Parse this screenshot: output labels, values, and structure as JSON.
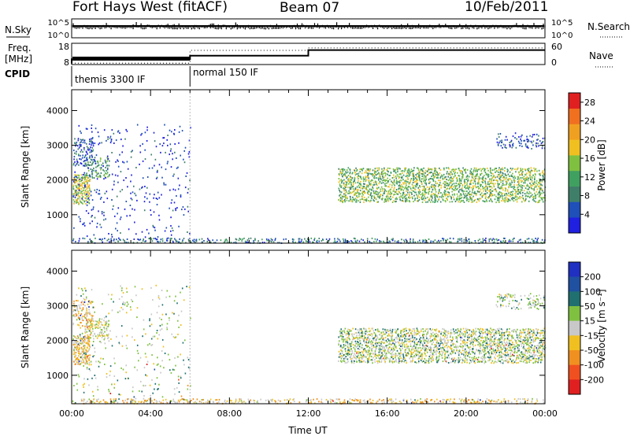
{
  "title": {
    "station": "Fort Hays West (fitACF)",
    "beam": "Beam 07",
    "date": "10/Feb/2011"
  },
  "colors": {
    "rp_cols": [
      "#2020e0",
      "#1f4fb8",
      "#3f7f6a",
      "#40a060",
      "#80c040",
      "#f0c020",
      "#f0a020",
      "#f07020",
      "#e02020"
    ],
    "vel_cols": [
      "#2030c0",
      "#2050a0",
      "#207070",
      "#80c040",
      "#c8c8c8",
      "#f0c020",
      "#f09020",
      "#f05020",
      "#e02020"
    ]
  },
  "chart_data": [
    {
      "type": "line",
      "name": "noise",
      "left_label": "N.Sky",
      "right_label": "N.Search",
      "y_ticks": [
        "10^5",
        "10^0"
      ],
      "right_ticks": [
        "10^5",
        "10^0"
      ],
      "note": "sky noise (solid) and search noise (dotted) vs time"
    },
    {
      "type": "line",
      "name": "frequency",
      "left_label": "Freq.",
      "left_unit": "[MHz]",
      "right_label": "Nave",
      "y_ticks": [
        "18",
        "8"
      ],
      "right_ticks": [
        "60",
        "0"
      ],
      "ylim": [
        8,
        18
      ],
      "right_ylim": [
        0,
        60
      ],
      "freq_series": {
        "x": [
          0.0,
          0.0,
          6.0,
          6.0,
          12.0,
          12.0,
          24.0
        ],
        "y": [
          8.5,
          10.5,
          10.5,
          12.2,
          12.2,
          14.8,
          14.8
        ]
      },
      "nave_series": {
        "x": [
          0.0,
          6.0,
          6.0,
          12.0,
          12.0,
          24.0
        ],
        "y": [
          4,
          4,
          40,
          40,
          47,
          47
        ]
      }
    },
    {
      "type": "table",
      "name": "cpid",
      "label": "CPID",
      "segments": [
        {
          "start": 0.0,
          "end": 6.0,
          "text": "themis 3300 IF"
        },
        {
          "start": 6.0,
          "end": 24.0,
          "text": "normal 150 IF"
        }
      ]
    },
    {
      "type": "heatmap",
      "name": "power",
      "ylabel": "Slant Range [km]",
      "xlim": [
        0,
        24
      ],
      "ylim": [
        180,
        4600
      ],
      "y_ticks": [
        1000,
        2000,
        3000,
        4000
      ],
      "colorbar": {
        "label": "Power [dB]",
        "ticks": [
          4,
          8,
          12,
          16,
          20,
          24,
          28
        ],
        "range": [
          0,
          30
        ]
      },
      "regions": [
        {
          "t": [
            0.05,
            0.9
          ],
          "r": [
            1300,
            2150
          ],
          "level": 0.55,
          "density": 0.9
        },
        {
          "t": [
            0.6,
            1.9
          ],
          "r": [
            2050,
            2650
          ],
          "level": 0.35,
          "density": 0.6
        },
        {
          "t": [
            0.05,
            1.1
          ],
          "r": [
            2400,
            3200
          ],
          "level": 0.2,
          "density": 0.45
        },
        {
          "t": [
            0.05,
            6.0
          ],
          "r": [
            200,
            3600
          ],
          "level": 0.1,
          "density": 0.08
        },
        {
          "t": [
            13.5,
            24.0
          ],
          "r": [
            1350,
            2350
          ],
          "level": 0.45,
          "density": 0.75
        },
        {
          "t": [
            21.5,
            24.0
          ],
          "r": [
            2900,
            3350
          ],
          "level": 0.15,
          "density": 0.35
        },
        {
          "t": [
            0.0,
            24.0
          ],
          "r": [
            180,
            320
          ],
          "level": 0.25,
          "density": 0.5
        }
      ]
    },
    {
      "type": "heatmap",
      "name": "velocity",
      "ylabel": "Slant Range [km]",
      "xlabel": "Time UT",
      "xlim": [
        0,
        24
      ],
      "ylim": [
        180,
        4600
      ],
      "x_ticks": [
        "00:00",
        "04:00",
        "08:00",
        "12:00",
        "16:00",
        "20:00",
        "00:00"
      ],
      "y_ticks": [
        1000,
        2000,
        3000,
        4000
      ],
      "colorbar": {
        "label": "Velocity [m s⁻¹]",
        "ticks": [
          200,
          100,
          50,
          15,
          -15,
          -50,
          -100,
          -200
        ]
      },
      "regions": [
        {
          "t": [
            0.05,
            0.9
          ],
          "r": [
            1300,
            2150
          ],
          "level": 0.6,
          "density": 0.9
        },
        {
          "t": [
            0.6,
            1.9
          ],
          "r": [
            2050,
            2650
          ],
          "level": 0.5,
          "density": 0.6
        },
        {
          "t": [
            0.05,
            1.1
          ],
          "r": [
            2400,
            3200
          ],
          "level": 0.6,
          "density": 0.45
        },
        {
          "t": [
            0.05,
            6.0
          ],
          "r": [
            200,
            3600
          ],
          "level": 0.45,
          "density": 0.08
        },
        {
          "t": [
            13.5,
            24.0
          ],
          "r": [
            1350,
            2350
          ],
          "level": 0.45,
          "density": 0.75
        },
        {
          "t": [
            21.5,
            24.0
          ],
          "r": [
            2900,
            3350
          ],
          "level": 0.45,
          "density": 0.35
        },
        {
          "t": [
            0.0,
            24.0
          ],
          "r": [
            180,
            320
          ],
          "level": 0.6,
          "density": 0.5
        }
      ]
    }
  ]
}
